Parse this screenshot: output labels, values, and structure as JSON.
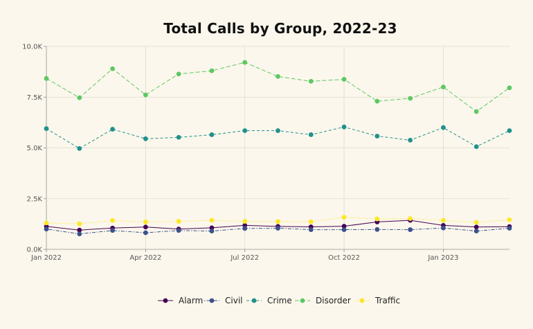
{
  "chart_data": {
    "type": "line",
    "title": "Total Calls by Group, 2022-23",
    "xlabel": "",
    "ylabel": "",
    "x": [
      "2022-01",
      "2022-02",
      "2022-03",
      "2022-04",
      "2022-05",
      "2022-06",
      "2022-07",
      "2022-08",
      "2022-09",
      "2022-10",
      "2022-11",
      "2022-12",
      "2023-01",
      "2023-02",
      "2023-03"
    ],
    "x_ticks": [
      "Jan 2022",
      "Apr 2022",
      "Jul 2022",
      "Oct 2022",
      "Jan 2023"
    ],
    "y_ticks": [
      "0.0K",
      "2.5K",
      "5.0K",
      "7.5K",
      "10.0K"
    ],
    "ylim": [
      0,
      10000
    ],
    "grid": true,
    "legend_position": "bottom",
    "series": [
      {
        "name": "Alarm",
        "color": "#440154",
        "dash": "solid",
        "values": [
          1130,
          950,
          1050,
          1100,
          1000,
          1060,
          1180,
          1130,
          1110,
          1140,
          1350,
          1430,
          1180,
          1100,
          1120
        ]
      },
      {
        "name": "Civil",
        "color": "#3b528b",
        "dash": "dotdash",
        "values": [
          1000,
          760,
          930,
          820,
          930,
          900,
          1030,
          1040,
          970,
          970,
          980,
          970,
          1050,
          900,
          1040
        ]
      },
      {
        "name": "Crime",
        "color": "#21908d",
        "dash": "dashed",
        "values": [
          5950,
          4970,
          5920,
          5450,
          5520,
          5650,
          5850,
          5850,
          5650,
          6030,
          5580,
          5380,
          6000,
          5060,
          5850
        ]
      },
      {
        "name": "Disorder",
        "color": "#5dc863",
        "dash": "longdash",
        "values": [
          8420,
          7470,
          8900,
          7610,
          8640,
          8800,
          9210,
          8520,
          8280,
          8380,
          7300,
          7440,
          8000,
          6790,
          7960
        ]
      },
      {
        "name": "Traffic",
        "color": "#fde725",
        "dash": "dotted",
        "values": [
          1300,
          1260,
          1420,
          1350,
          1380,
          1430,
          1380,
          1370,
          1360,
          1580,
          1500,
          1520,
          1430,
          1330,
          1460
        ]
      }
    ]
  }
}
